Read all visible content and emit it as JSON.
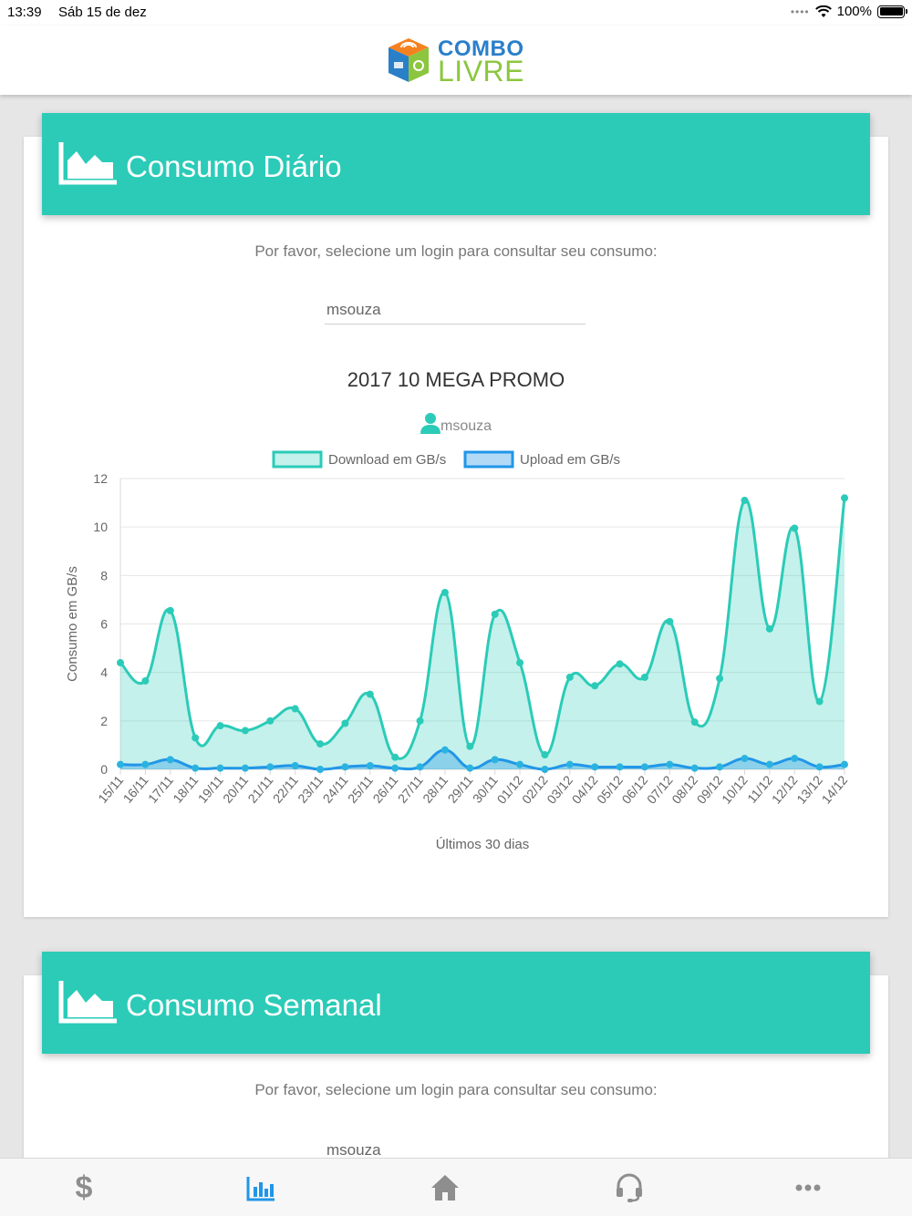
{
  "status_bar": {
    "time": "13:39",
    "date": "Sáb 15 de dez",
    "battery": "100%"
  },
  "brand": {
    "line1": "COMBO",
    "line2": "LIVRE"
  },
  "daily": {
    "title": "Consumo Diário",
    "prompt": "Por favor, selecione um login para consultar seu consumo:",
    "login": "msouza",
    "plan": "2017 10 MEGA PROMO",
    "user": "msouza"
  },
  "weekly": {
    "title": "Consumo Semanal",
    "prompt": "Por favor, selecione um login para consultar seu consumo:",
    "login": "msouza"
  },
  "tabs": {
    "dollar": "$"
  },
  "colors": {
    "accent": "#2bcbb8",
    "download": "#2bcbb8",
    "upload": "#2196e8",
    "active_tab": "#2196e8",
    "inactive_tab": "#8e8e8e"
  },
  "chart_data": {
    "type": "line",
    "ylabel": "Consumo em GB/s",
    "xlabel": "Últimos 30 dias",
    "ylim": [
      0,
      12
    ],
    "yticks": [
      0,
      2,
      4,
      6,
      8,
      10,
      12
    ],
    "legend": "top",
    "grid": true,
    "categories": [
      "15/11",
      "16/11",
      "17/11",
      "18/11",
      "19/11",
      "20/11",
      "21/11",
      "22/11",
      "23/11",
      "24/11",
      "25/11",
      "26/11",
      "27/11",
      "28/11",
      "29/11",
      "30/11",
      "01/12",
      "02/12",
      "03/12",
      "04/12",
      "05/12",
      "06/12",
      "07/12",
      "08/12",
      "09/12",
      "10/12",
      "11/12",
      "12/12",
      "13/12",
      "14/12"
    ],
    "series": [
      {
        "name": "Download em GB/s",
        "values": [
          4.4,
          3.65,
          6.55,
          1.3,
          1.8,
          1.6,
          2.0,
          2.5,
          1.05,
          1.9,
          3.1,
          0.5,
          2.0,
          7.3,
          0.95,
          6.4,
          4.4,
          0.6,
          3.8,
          3.45,
          4.35,
          3.8,
          6.1,
          1.95,
          3.75,
          11.1,
          5.8,
          9.95,
          2.8,
          11.2
        ]
      },
      {
        "name": "Upload em GB/s",
        "values": [
          0.2,
          0.2,
          0.4,
          0.05,
          0.05,
          0.05,
          0.1,
          0.15,
          0.0,
          0.1,
          0.15,
          0.05,
          0.1,
          0.8,
          0.05,
          0.4,
          0.2,
          0.0,
          0.2,
          0.1,
          0.1,
          0.1,
          0.2,
          0.05,
          0.1,
          0.45,
          0.2,
          0.45,
          0.1,
          0.2
        ]
      }
    ]
  }
}
